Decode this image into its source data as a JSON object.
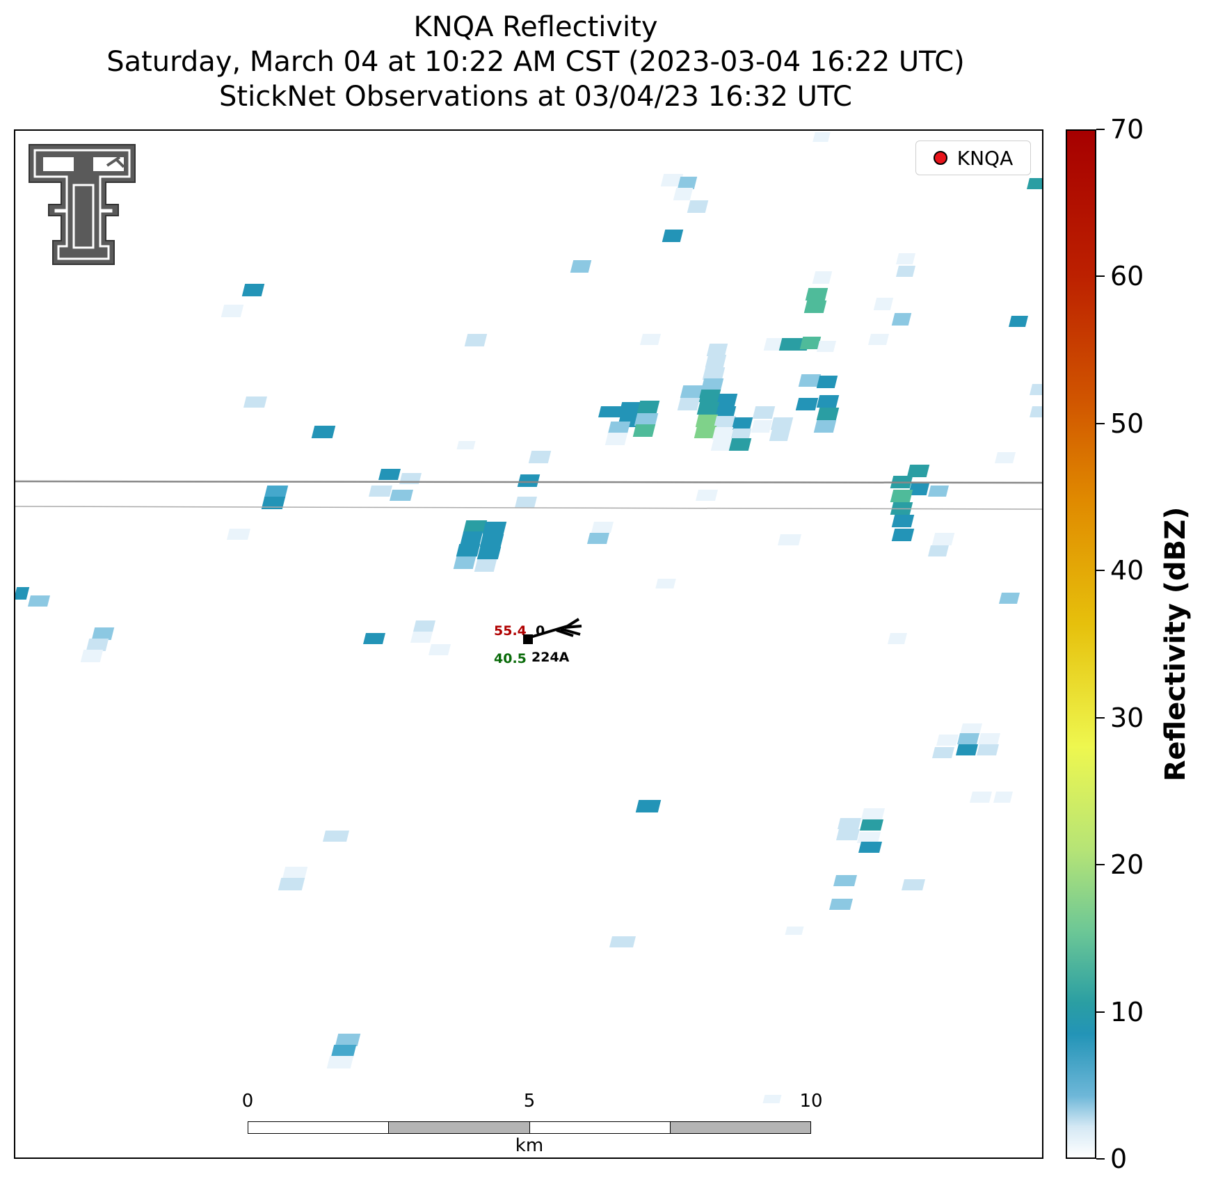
{
  "title": {
    "line1": "KNQA Reflectivity",
    "line2": "Saturday, March 04 at 10:22 AM CST (2023-03-04 16:22 UTC)",
    "line3": "StickNet Observations at 03/04/23 16:32 UTC"
  },
  "map": {
    "logo": "texas-tech-double-t-logo",
    "legend_label": "KNQA",
    "legend_marker_color": "#e8141b",
    "boundary_lines": "two gray horizontal lines (county/road)",
    "station": {
      "id": "224A",
      "temperature": "55.4",
      "dewpoint": "40.5",
      "pressure_partial": "0",
      "temperature_color": "#b00000",
      "dewpoint_color": "#0a6b0a"
    }
  },
  "scale_bar": {
    "ticks": [
      "0",
      "5",
      "10"
    ],
    "unit": "km"
  },
  "colorbar": {
    "label": "Reflectivity (dBZ)",
    "ticks": [
      "0",
      "10",
      "20",
      "30",
      "40",
      "50",
      "60",
      "70"
    ],
    "min": 0,
    "max": 70,
    "colors": {
      "0": "#ffffff",
      "5": "#6eb7d8",
      "10": "#2a9ea3",
      "20": "#8dd38a",
      "30": "#eef74f",
      "40": "#e6c00c",
      "50": "#e08a00",
      "60": "#c43000",
      "70": "#a60000"
    }
  }
}
